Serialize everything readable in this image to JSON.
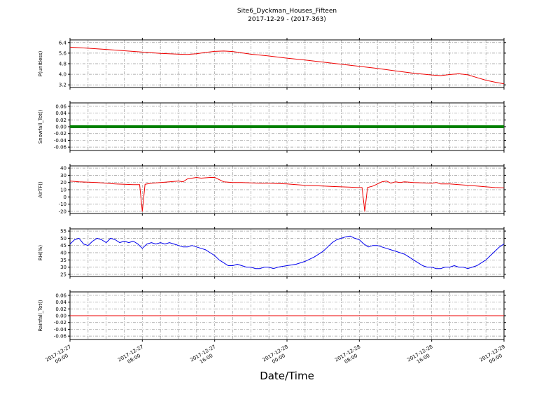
{
  "chart_data": {
    "type": "line",
    "title": "Site6_Dyckman_Houses_Fifteen",
    "subtitle": "2017-12-29 - (2017-363)",
    "xlabel": "Date/Time",
    "xlim": [
      0,
      48
    ],
    "x_grid_step": 2,
    "x_major_ticks": [
      {
        "h": 0,
        "date": "2017-12-27",
        "time": "00:00"
      },
      {
        "h": 8,
        "date": "2017-12-27",
        "time": "08:00"
      },
      {
        "h": 16,
        "date": "2017-12-27",
        "time": "16:00"
      },
      {
        "h": 24,
        "date": "2017-12-28",
        "time": "00:00"
      },
      {
        "h": 32,
        "date": "2017-12-28",
        "time": "08:00"
      },
      {
        "h": 40,
        "date": "2017-12-28",
        "time": "16:00"
      },
      {
        "h": 48,
        "date": "2017-12-29",
        "time": "00:00"
      }
    ],
    "panels": [
      {
        "ylabel": "P(unitless)",
        "color": "#ee0000",
        "linewidth": 1,
        "ylim": [
          3.0,
          6.6
        ],
        "ytick_vals": [
          6.4,
          5.6,
          4.8,
          4.0,
          3.2
        ],
        "ytick_labels": [
          "6.4",
          "5.6",
          "4.8",
          "4.0",
          "3.2"
        ],
        "points": [
          [
            0,
            6.05
          ],
          [
            2,
            5.97
          ],
          [
            4,
            5.88
          ],
          [
            6,
            5.78
          ],
          [
            8,
            5.68
          ],
          [
            10,
            5.58
          ],
          [
            12,
            5.52
          ],
          [
            13,
            5.5
          ],
          [
            14,
            5.55
          ],
          [
            15,
            5.65
          ],
          [
            16,
            5.73
          ],
          [
            17,
            5.76
          ],
          [
            18,
            5.72
          ],
          [
            19,
            5.62
          ],
          [
            20,
            5.52
          ],
          [
            22,
            5.38
          ],
          [
            24,
            5.22
          ],
          [
            26,
            5.08
          ],
          [
            28,
            4.92
          ],
          [
            30,
            4.76
          ],
          [
            32,
            4.6
          ],
          [
            34,
            4.44
          ],
          [
            36,
            4.26
          ],
          [
            38,
            4.08
          ],
          [
            40,
            3.95
          ],
          [
            41,
            3.9
          ],
          [
            42,
            3.98
          ],
          [
            43,
            4.04
          ],
          [
            44,
            3.96
          ],
          [
            45,
            3.75
          ],
          [
            46,
            3.55
          ],
          [
            47,
            3.4
          ],
          [
            48,
            3.28
          ]
        ]
      },
      {
        "ylabel": "Snowfall_Tot()",
        "color": "#008000",
        "linewidth": 4,
        "ylim": [
          -0.07,
          0.07
        ],
        "ytick_vals": [
          0.06,
          0.04,
          0.02,
          0.0,
          -0.02,
          -0.04,
          -0.06
        ],
        "ytick_labels": [
          "0.06",
          "0.04",
          "0.02",
          "0.00",
          "-0.02",
          "-0.04",
          "-0.06"
        ],
        "points": [
          [
            0,
            0
          ],
          [
            48,
            0
          ]
        ]
      },
      {
        "ylabel": "AirTF()",
        "color": "#ee0000",
        "linewidth": 1,
        "ylim": [
          -23,
          43
        ],
        "ytick_vals": [
          40,
          30,
          20,
          10,
          0,
          -10,
          -20
        ],
        "ytick_labels": [
          "40",
          "30",
          "20",
          "10",
          "0",
          "-10",
          "-20"
        ],
        "points": [
          [
            0,
            22
          ],
          [
            1,
            21
          ],
          [
            2,
            20.5
          ],
          [
            3,
            20
          ],
          [
            4,
            19
          ],
          [
            5,
            18
          ],
          [
            6,
            17.5
          ],
          [
            7,
            17
          ],
          [
            7.7,
            17
          ],
          [
            8,
            -20
          ],
          [
            8.3,
            17.5
          ],
          [
            9,
            19
          ],
          [
            10,
            20
          ],
          [
            11,
            21
          ],
          [
            12,
            22
          ],
          [
            12.5,
            21
          ],
          [
            13,
            25
          ],
          [
            13.5,
            26
          ],
          [
            14,
            27
          ],
          [
            14.5,
            26
          ],
          [
            15,
            26.5
          ],
          [
            15.5,
            27
          ],
          [
            16,
            27
          ],
          [
            16.5,
            24
          ],
          [
            17,
            21
          ],
          [
            18,
            20
          ],
          [
            19,
            20
          ],
          [
            20,
            19.5
          ],
          [
            21,
            19
          ],
          [
            22,
            19
          ],
          [
            23,
            18.5
          ],
          [
            24,
            18
          ],
          [
            25,
            17
          ],
          [
            26,
            16
          ],
          [
            27,
            15.5
          ],
          [
            28,
            15
          ],
          [
            29,
            14.5
          ],
          [
            30,
            14
          ],
          [
            31,
            13.5
          ],
          [
            32,
            13
          ],
          [
            32.3,
            13
          ],
          [
            32.6,
            -20
          ],
          [
            32.9,
            13
          ],
          [
            33.5,
            15
          ],
          [
            34,
            18
          ],
          [
            34.5,
            21
          ],
          [
            35,
            22
          ],
          [
            35.5,
            19
          ],
          [
            36,
            21
          ],
          [
            36.5,
            20
          ],
          [
            37,
            21
          ],
          [
            38,
            20
          ],
          [
            39,
            19.5
          ],
          [
            40,
            19
          ],
          [
            40.5,
            20
          ],
          [
            41,
            18
          ],
          [
            42,
            18
          ],
          [
            43,
            17
          ],
          [
            44,
            16
          ],
          [
            45,
            15
          ],
          [
            46,
            14
          ],
          [
            47,
            13
          ],
          [
            48,
            12.5
          ]
        ]
      },
      {
        "ylabel": "RH(%)",
        "color": "#0000ee",
        "linewidth": 1,
        "ylim": [
          23.5,
          56.5
        ],
        "ytick_vals": [
          55,
          50,
          45,
          40,
          35,
          30,
          25
        ],
        "ytick_labels": [
          "55",
          "50",
          "45",
          "40",
          "35",
          "30",
          "25"
        ],
        "points": [
          [
            0,
            46
          ],
          [
            0.5,
            49
          ],
          [
            1,
            50
          ],
          [
            1.5,
            46
          ],
          [
            2,
            45
          ],
          [
            2.5,
            48
          ],
          [
            3,
            50
          ],
          [
            3.5,
            49
          ],
          [
            4,
            47
          ],
          [
            4.5,
            50
          ],
          [
            5,
            49
          ],
          [
            5.5,
            47
          ],
          [
            6,
            48
          ],
          [
            6.5,
            47
          ],
          [
            7,
            48
          ],
          [
            7.5,
            46
          ],
          [
            8,
            43
          ],
          [
            8.5,
            46
          ],
          [
            9,
            47
          ],
          [
            9.5,
            46
          ],
          [
            10,
            47
          ],
          [
            10.5,
            46
          ],
          [
            11,
            47
          ],
          [
            11.5,
            46
          ],
          [
            12,
            45
          ],
          [
            12.5,
            44
          ],
          [
            13,
            44
          ],
          [
            13.5,
            45
          ],
          [
            14,
            44
          ],
          [
            14.5,
            43
          ],
          [
            15,
            42
          ],
          [
            15.5,
            40
          ],
          [
            16,
            38
          ],
          [
            16.5,
            35
          ],
          [
            17,
            33
          ],
          [
            17.5,
            31
          ],
          [
            18,
            31
          ],
          [
            18.5,
            32
          ],
          [
            19,
            31
          ],
          [
            19.5,
            30
          ],
          [
            20,
            30
          ],
          [
            20.5,
            29
          ],
          [
            21,
            29
          ],
          [
            21.5,
            30
          ],
          [
            22,
            30
          ],
          [
            22.5,
            29
          ],
          [
            23,
            30
          ],
          [
            24,
            31
          ],
          [
            25,
            32
          ],
          [
            26,
            34
          ],
          [
            27,
            37
          ],
          [
            28,
            41
          ],
          [
            28.5,
            44
          ],
          [
            29,
            47
          ],
          [
            29.5,
            49
          ],
          [
            30,
            50
          ],
          [
            30.5,
            51
          ],
          [
            31,
            51.5
          ],
          [
            31.5,
            50
          ],
          [
            32,
            49
          ],
          [
            32.5,
            46
          ],
          [
            33,
            44
          ],
          [
            33.5,
            45
          ],
          [
            34,
            45
          ],
          [
            34.5,
            44
          ],
          [
            35,
            43
          ],
          [
            35.5,
            42
          ],
          [
            36,
            41
          ],
          [
            36.5,
            40
          ],
          [
            37,
            39
          ],
          [
            37.5,
            37
          ],
          [
            38,
            35
          ],
          [
            38.5,
            33
          ],
          [
            39,
            31
          ],
          [
            39.5,
            30
          ],
          [
            40,
            30
          ],
          [
            40.5,
            29
          ],
          [
            41,
            29
          ],
          [
            41.5,
            30
          ],
          [
            42,
            30
          ],
          [
            42.5,
            31
          ],
          [
            43,
            30
          ],
          [
            43.5,
            30
          ],
          [
            44,
            29
          ],
          [
            44.5,
            30
          ],
          [
            45,
            31
          ],
          [
            45.5,
            33
          ],
          [
            46,
            35
          ],
          [
            46.5,
            38
          ],
          [
            47,
            41
          ],
          [
            47.5,
            44
          ],
          [
            48,
            46
          ]
        ]
      },
      {
        "ylabel": "Rainfall_Tot()",
        "color": "#ee0000",
        "linewidth": 1,
        "ylim": [
          -0.07,
          0.07
        ],
        "ytick_vals": [
          0.06,
          0.04,
          0.02,
          0.0,
          -0.02,
          -0.04,
          -0.06
        ],
        "ytick_labels": [
          "0.06",
          "0.04",
          "0.02",
          "0.00",
          "-0.02",
          "-0.04",
          "-0.06"
        ],
        "points": [
          [
            0,
            0
          ],
          [
            48,
            0
          ]
        ]
      }
    ]
  }
}
